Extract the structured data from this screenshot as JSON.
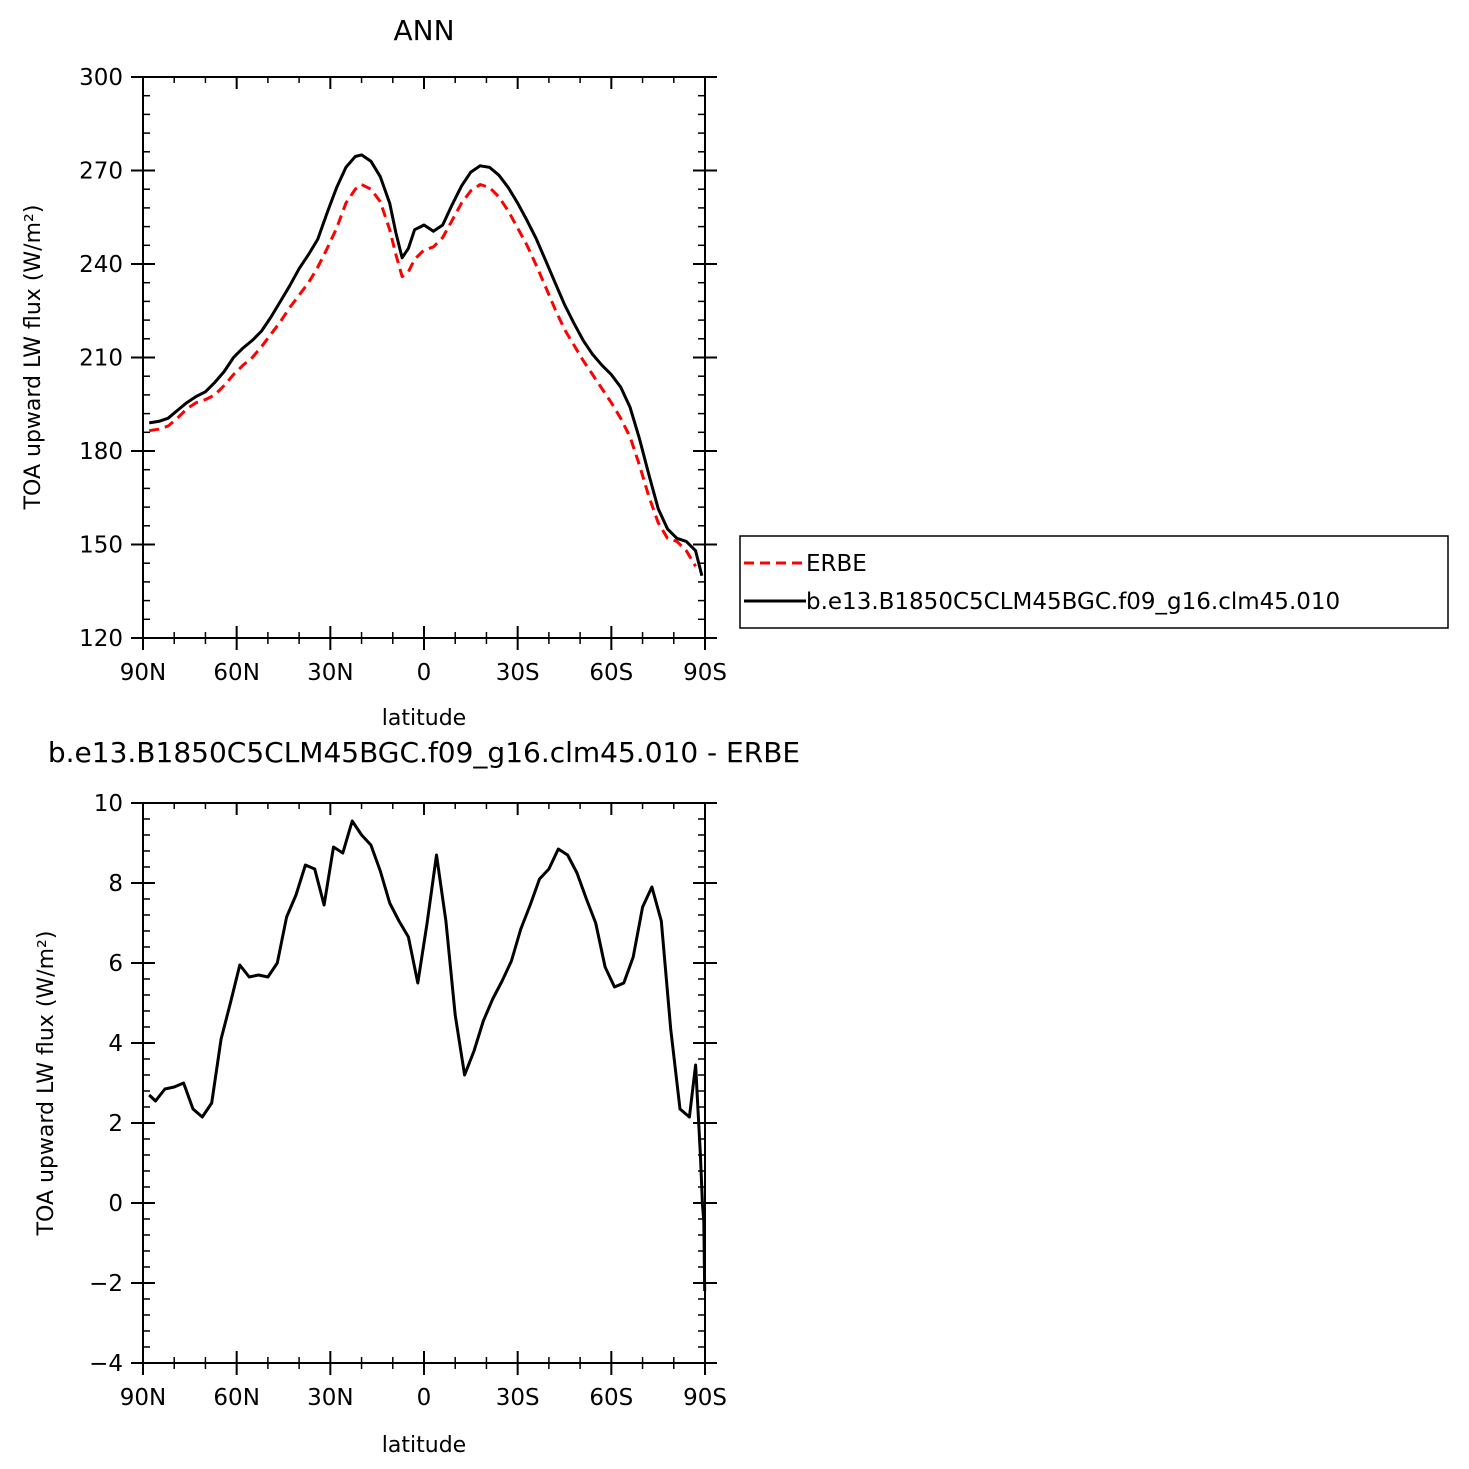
{
  "chart_data": [
    {
      "type": "line",
      "title": "ANN",
      "xlabel": "latitude",
      "ylabel": "TOA upward LW flux (W/m²)",
      "xlim": [
        90,
        -90
      ],
      "ylim": [
        120,
        300
      ],
      "x_ticks": [
        {
          "v": 90,
          "label": "90N"
        },
        {
          "v": 60,
          "label": "60N"
        },
        {
          "v": 30,
          "label": "30N"
        },
        {
          "v": 0,
          "label": "0"
        },
        {
          "v": -30,
          "label": "30S"
        },
        {
          "v": -60,
          "label": "60S"
        },
        {
          "v": -90,
          "label": "90S"
        }
      ],
      "y_ticks": [
        {
          "v": 120,
          "label": "120"
        },
        {
          "v": 150,
          "label": "150"
        },
        {
          "v": 180,
          "label": "180"
        },
        {
          "v": 210,
          "label": "210"
        },
        {
          "v": 240,
          "label": "240"
        },
        {
          "v": 270,
          "label": "270"
        },
        {
          "v": 300,
          "label": "300"
        }
      ],
      "grid": false,
      "legend": "right",
      "series": [
        {
          "name": "ERBE",
          "color": "#ff0000",
          "dash": true,
          "points": [
            [
              88,
              186.5
            ],
            [
              85,
              187
            ],
            [
              82,
              188
            ],
            [
              79,
              190.5
            ],
            [
              76,
              193.5
            ],
            [
              73,
              195.5
            ],
            [
              70,
              196.5
            ],
            [
              67,
              198
            ],
            [
              64,
              201
            ],
            [
              61,
              204.5
            ],
            [
              58,
              207.5
            ],
            [
              55,
              210
            ],
            [
              52,
              213.5
            ],
            [
              49,
              217.5
            ],
            [
              46,
              221.5
            ],
            [
              43,
              226
            ],
            [
              40,
              230
            ],
            [
              37,
              234
            ],
            [
              34,
              239
            ],
            [
              31,
              245
            ],
            [
              28,
              251.5
            ],
            [
              25,
              259.5
            ],
            [
              22,
              264
            ],
            [
              20,
              265.5
            ],
            [
              17,
              264
            ],
            [
              14,
              260
            ],
            [
              11,
              251
            ],
            [
              9,
              243
            ],
            [
              7,
              236
            ],
            [
              5,
              237.5
            ],
            [
              3,
              241.5
            ],
            [
              0,
              244.5
            ],
            [
              -3,
              245.5
            ],
            [
              -6,
              248.5
            ],
            [
              -9,
              254
            ],
            [
              -12,
              259.5
            ],
            [
              -15,
              263.5
            ],
            [
              -18,
              265.5
            ],
            [
              -21,
              264.5
            ],
            [
              -24,
              261.5
            ],
            [
              -27,
              257
            ],
            [
              -30,
              251.5
            ],
            [
              -33,
              246
            ],
            [
              -36,
              239.5
            ],
            [
              -39,
              232.5
            ],
            [
              -42,
              225.5
            ],
            [
              -45,
              219
            ],
            [
              -48,
              214
            ],
            [
              -51,
              209
            ],
            [
              -54,
              204.5
            ],
            [
              -57,
              200
            ],
            [
              -60,
              195.5
            ],
            [
              -63,
              190.5
            ],
            [
              -66,
              184.5
            ],
            [
              -69,
              175.5
            ],
            [
              -72,
              165.5
            ],
            [
              -75,
              157
            ],
            [
              -78,
              152
            ],
            [
              -81,
              151
            ],
            [
              -84,
              148
            ],
            [
              -87,
              143
            ]
          ]
        },
        {
          "name": "b.e13.B1850C5CLM45BGC.f09_g16.clm45.010",
          "color": "#000000",
          "dash": false,
          "points": [
            [
              88,
              189
            ],
            [
              85,
              189.5
            ],
            [
              82,
              190.5
            ],
            [
              79,
              193
            ],
            [
              76,
              195.5
            ],
            [
              73,
              197.5
            ],
            [
              70,
              199
            ],
            [
              67,
              202
            ],
            [
              64,
              205.5
            ],
            [
              61,
              210
            ],
            [
              58,
              213
            ],
            [
              55,
              215.5
            ],
            [
              52,
              218.5
            ],
            [
              49,
              223
            ],
            [
              46,
              228
            ],
            [
              43,
              233
            ],
            [
              40,
              238.5
            ],
            [
              37,
              243
            ],
            [
              34,
              248
            ],
            [
              31,
              256.5
            ],
            [
              28,
              264.5
            ],
            [
              25,
              271
            ],
            [
              22,
              274.5
            ],
            [
              20,
              275
            ],
            [
              17,
              273
            ],
            [
              14,
              268
            ],
            [
              11,
              259.5
            ],
            [
              9,
              250
            ],
            [
              7,
              242
            ],
            [
              5,
              245
            ],
            [
              3,
              251
            ],
            [
              1,
              252
            ],
            [
              0,
              252.5
            ],
            [
              -3,
              250.5
            ],
            [
              -6,
              252.5
            ],
            [
              -9,
              259
            ],
            [
              -12,
              265
            ],
            [
              -15,
              269.5
            ],
            [
              -18,
              271.5
            ],
            [
              -21,
              271
            ],
            [
              -24,
              268.5
            ],
            [
              -27,
              264.5
            ],
            [
              -30,
              259.5
            ],
            [
              -33,
              254
            ],
            [
              -36,
              248
            ],
            [
              -39,
              241
            ],
            [
              -42,
              234
            ],
            [
              -45,
              227
            ],
            [
              -48,
              221
            ],
            [
              -51,
              215.5
            ],
            [
              -54,
              211
            ],
            [
              -57,
              207.5
            ],
            [
              -60,
              204.5
            ],
            [
              -63,
              200.5
            ],
            [
              -66,
              194
            ],
            [
              -69,
              184
            ],
            [
              -72,
              172.5
            ],
            [
              -75,
              161.5
            ],
            [
              -78,
              155
            ],
            [
              -81,
              152
            ],
            [
              -84,
              151
            ],
            [
              -87,
              148
            ],
            [
              -89,
              140
            ]
          ]
        }
      ]
    },
    {
      "type": "line",
      "title": "b.e13.B1850C5CLM45BGC.f09_g16.clm45.010 - ERBE",
      "xlabel": "latitude",
      "ylabel": "TOA upward LW flux (W/m²)",
      "xlim": [
        90,
        -90
      ],
      "ylim": [
        -4,
        10
      ],
      "x_ticks": [
        {
          "v": 90,
          "label": "90N"
        },
        {
          "v": 60,
          "label": "60N"
        },
        {
          "v": 30,
          "label": "30N"
        },
        {
          "v": 0,
          "label": "0"
        },
        {
          "v": -30,
          "label": "30S"
        },
        {
          "v": -60,
          "label": "60S"
        },
        {
          "v": -90,
          "label": "90S"
        }
      ],
      "y_ticks": [
        {
          "v": -4,
          "label": "−4"
        },
        {
          "v": -2,
          "label": "−2"
        },
        {
          "v": 0,
          "label": "0"
        },
        {
          "v": 2,
          "label": "2"
        },
        {
          "v": 4,
          "label": "4"
        },
        {
          "v": 6,
          "label": "6"
        },
        {
          "v": 8,
          "label": "8"
        },
        {
          "v": 10,
          "label": "10"
        }
      ],
      "grid": false,
      "series": [
        {
          "color": "#000000",
          "dash": false,
          "points": [
            [
              88,
              2.7
            ],
            [
              86,
              2.55
            ],
            [
              83,
              2.85
            ],
            [
              80,
              2.9
            ],
            [
              77,
              3.0
            ],
            [
              74,
              2.35
            ],
            [
              71,
              2.15
            ],
            [
              68,
              2.5
            ],
            [
              65,
              4.1
            ],
            [
              62,
              5.0
            ],
            [
              59,
              5.95
            ],
            [
              56,
              5.65
            ],
            [
              53,
              5.7
            ],
            [
              50,
              5.65
            ],
            [
              47,
              6.0
            ],
            [
              44,
              7.15
            ],
            [
              41,
              7.7
            ],
            [
              38,
              8.45
            ],
            [
              35,
              8.35
            ],
            [
              32,
              7.45
            ],
            [
              29,
              8.9
            ],
            [
              26,
              8.75
            ],
            [
              23,
              9.55
            ],
            [
              20,
              9.2
            ],
            [
              17,
              8.95
            ],
            [
              14,
              8.3
            ],
            [
              11,
              7.5
            ],
            [
              8,
              7.05
            ],
            [
              5,
              6.65
            ],
            [
              2,
              5.5
            ],
            [
              -1,
              7.0
            ],
            [
              -4,
              8.7
            ],
            [
              -7,
              7.05
            ],
            [
              -10,
              4.7
            ],
            [
              -13,
              3.2
            ],
            [
              -16,
              3.8
            ],
            [
              -19,
              4.55
            ],
            [
              -22,
              5.1
            ],
            [
              -25,
              5.55
            ],
            [
              -28,
              6.05
            ],
            [
              -31,
              6.85
            ],
            [
              -34,
              7.45
            ],
            [
              -37,
              8.1
            ],
            [
              -40,
              8.35
            ],
            [
              -43,
              8.85
            ],
            [
              -46,
              8.7
            ],
            [
              -49,
              8.25
            ],
            [
              -52,
              7.6
            ],
            [
              -55,
              7.0
            ],
            [
              -58,
              5.9
            ],
            [
              -61,
              5.4
            ],
            [
              -64,
              5.5
            ],
            [
              -67,
              6.15
            ],
            [
              -70,
              7.4
            ],
            [
              -73,
              7.9
            ],
            [
              -76,
              7.05
            ],
            [
              -79,
              4.35
            ],
            [
              -82,
              2.35
            ],
            [
              -85,
              2.15
            ],
            [
              -87,
              3.45
            ],
            [
              -88.5,
              1.25
            ],
            [
              -89.2,
              -0.05
            ],
            [
              -89.6,
              -0.45
            ],
            [
              -89.9,
              -2.2
            ]
          ]
        }
      ]
    }
  ]
}
